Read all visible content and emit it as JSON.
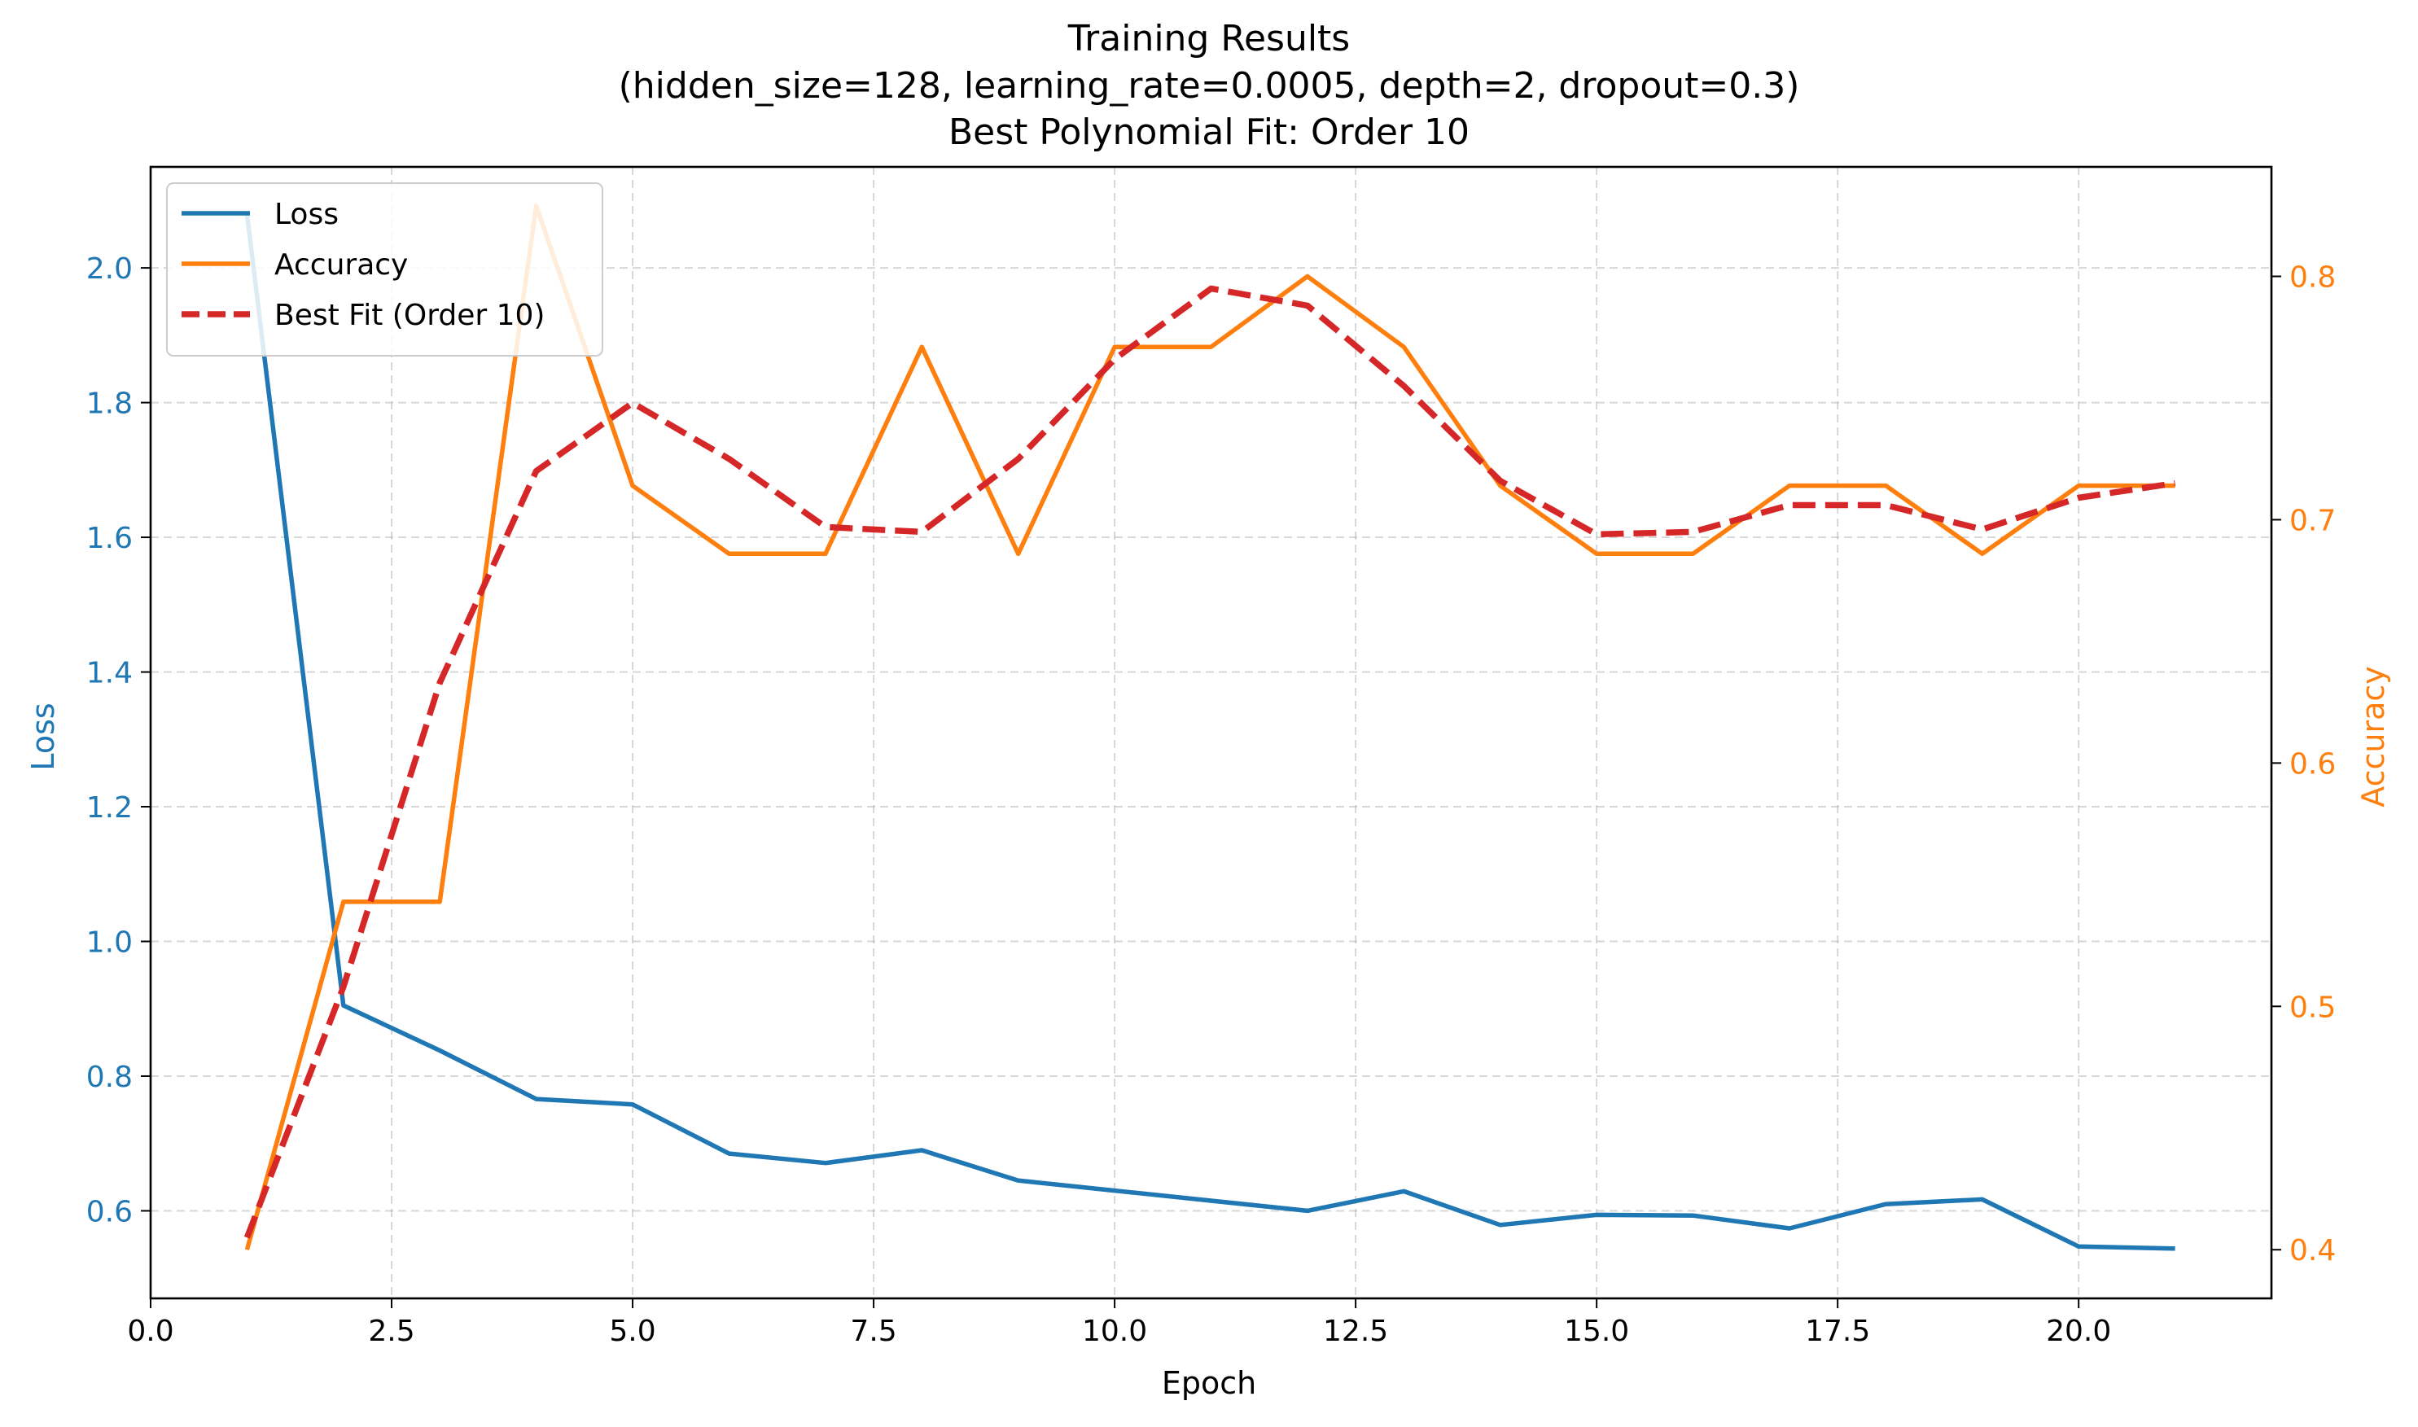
{
  "chart_data": {
    "type": "line",
    "title": "Training Results",
    "subtitle": "(hidden_size=128, learning_rate=0.0005, depth=2, dropout=0.3)",
    "subtitle2": "Best Polynomial Fit: Order 10",
    "xlabel": "Epoch",
    "ylabel_left": "Loss",
    "ylabel_right": "Accuracy",
    "xlim": [
      0,
      22
    ],
    "ylim_left": [
      0.47,
      2.15
    ],
    "ylim_right": [
      0.38,
      0.845
    ],
    "grid": true,
    "legend_position": "top-left",
    "x_ticks": [
      "0.0",
      "2.5",
      "5.0",
      "7.5",
      "10.0",
      "12.5",
      "15.0",
      "17.5",
      "20.0"
    ],
    "x_tick_values": [
      0,
      2.5,
      5,
      7.5,
      10,
      12.5,
      15,
      17.5,
      20
    ],
    "y_left_ticks": [
      "0.6",
      "0.8",
      "1.0",
      "1.2",
      "1.4",
      "1.6",
      "1.8",
      "2.0"
    ],
    "y_left_tick_values": [
      0.6,
      0.8,
      1.0,
      1.2,
      1.4,
      1.6,
      1.8,
      2.0
    ],
    "y_right_ticks": [
      "0.4",
      "0.5",
      "0.6",
      "0.7",
      "0.8"
    ],
    "y_right_tick_values": [
      0.4,
      0.5,
      0.6,
      0.7,
      0.8
    ],
    "x": [
      1,
      2,
      3,
      4,
      5,
      6,
      7,
      8,
      9,
      10,
      11,
      12,
      13,
      14,
      15,
      16,
      17,
      18,
      19,
      20,
      21
    ],
    "series": [
      {
        "name": "Loss",
        "axis": "left",
        "color": "#1f77b4",
        "dash": false,
        "values": [
          2.08,
          0.905,
          0.838,
          0.766,
          0.758,
          0.685,
          0.671,
          0.69,
          0.645,
          0.63,
          0.615,
          0.6,
          0.629,
          0.579,
          0.594,
          0.593,
          0.574,
          0.61,
          0.617,
          0.547,
          0.544
        ]
      },
      {
        "name": "Accuracy",
        "axis": "right",
        "color": "#ff7f0e",
        "dash": false,
        "values": [
          0.4,
          0.543,
          0.543,
          0.829,
          0.714,
          0.686,
          0.686,
          0.771,
          0.686,
          0.771,
          0.771,
          0.8,
          0.771,
          0.714,
          0.686,
          0.686,
          0.714,
          0.714,
          0.686,
          0.714,
          0.714
        ]
      },
      {
        "name": "Best Fit (Order 10)",
        "axis": "right",
        "color": "#d62728",
        "dash": true,
        "values": [
          0.405,
          0.508,
          0.633,
          0.72,
          0.748,
          0.725,
          0.697,
          0.695,
          0.725,
          0.766,
          0.795,
          0.788,
          0.755,
          0.716,
          0.694,
          0.695,
          0.706,
          0.706,
          0.696,
          0.709,
          0.715
        ]
      }
    ]
  }
}
